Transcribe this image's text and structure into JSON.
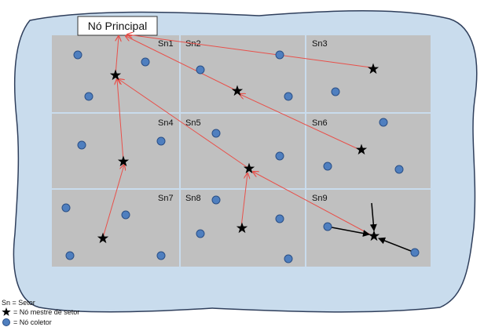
{
  "title": "Nó Principal",
  "sectors": [
    {
      "label": "Sn1"
    },
    {
      "label": "Sn2"
    },
    {
      "label": "Sn3"
    },
    {
      "label": "Sn4"
    },
    {
      "label": "Sn5"
    },
    {
      "label": "Sn6"
    },
    {
      "label": "Sn7"
    },
    {
      "label": "Sn8"
    },
    {
      "label": "Sn9"
    }
  ],
  "legend": {
    "sector": "Sn = Setor",
    "master": "= Nó mestre de setor",
    "collector": "= Nó coletor"
  },
  "colors": {
    "region_fill": "#c9dced",
    "region_stroke": "#2f3f5c",
    "sector_fill": "#c0c0c0",
    "collector_fill": "#4f7fbf",
    "collector_stroke": "#2a4f86",
    "route_red": "#e8504a",
    "route_black": "#000000"
  }
}
